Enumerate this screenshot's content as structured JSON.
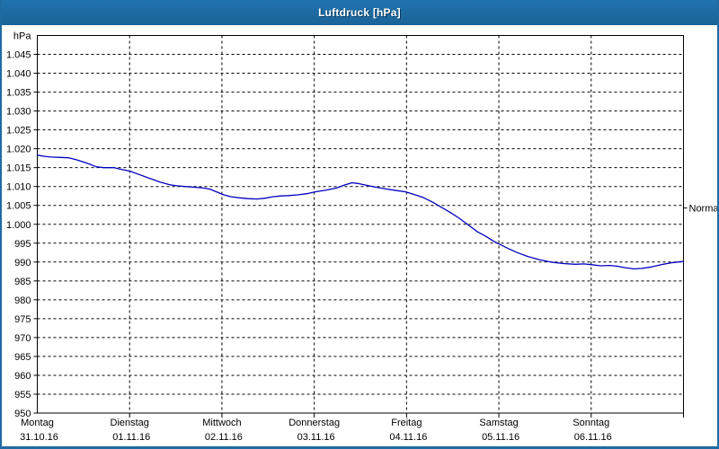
{
  "window": {
    "title": "Luftdruck [hPa]"
  },
  "colors": {
    "titlebar": "#1d6aa1",
    "window_border": "#1e6ba2",
    "background": "#ffffff",
    "grid": "#000000",
    "axis": "#000000",
    "series_line": "#0000bf",
    "label_text": "#000000"
  },
  "chart_data": {
    "type": "line",
    "title": "Luftdruck [hPa]",
    "ylabel_unit": "hPa",
    "y_axis": {
      "min": 950,
      "max": 1050,
      "step": 5,
      "unit_label": "hPa",
      "tick_labels": [
        "1.045",
        "1.040",
        "1.035",
        "1.030",
        "1.025",
        "1.020",
        "1.015",
        "1.010",
        "1.005",
        "1.000",
        "995",
        "990",
        "985",
        "980",
        "975",
        "970",
        "965",
        "960",
        "955",
        "950"
      ]
    },
    "x_axis": {
      "span_days": 7,
      "days": [
        {
          "name": "Montag",
          "date": "31.10.16"
        },
        {
          "name": "Dienstag",
          "date": "01.11.16"
        },
        {
          "name": "Mittwoch",
          "date": "02.11.16"
        },
        {
          "name": "Donnerstag",
          "date": "03.11.16"
        },
        {
          "name": "Freitag",
          "date": "04.11.16"
        },
        {
          "name": "Samstag",
          "date": "05.11.16"
        },
        {
          "name": "Sonntag",
          "date": "06.11.16"
        }
      ]
    },
    "annotations": [
      {
        "label": "Normal",
        "value": 1004.3,
        "side": "right"
      }
    ],
    "grid": "dashed",
    "legend_position": "none",
    "series": [
      {
        "name": "Luftdruck",
        "color": "#0000bf",
        "points": [
          [
            0.0,
            1018.3
          ],
          [
            0.08,
            1018.0
          ],
          [
            0.15,
            1017.8
          ],
          [
            0.25,
            1017.7
          ],
          [
            0.34,
            1017.6
          ],
          [
            0.42,
            1017.1
          ],
          [
            0.51,
            1016.4
          ],
          [
            0.58,
            1015.8
          ],
          [
            0.64,
            1015.2
          ],
          [
            0.72,
            1015.0
          ],
          [
            0.83,
            1015.0
          ],
          [
            0.9,
            1014.6
          ],
          [
            1.0,
            1014.1
          ],
          [
            1.1,
            1013.2
          ],
          [
            1.19,
            1012.4
          ],
          [
            1.33,
            1011.2
          ],
          [
            1.43,
            1010.5
          ],
          [
            1.51,
            1010.2
          ],
          [
            1.6,
            1010.0
          ],
          [
            1.7,
            1009.8
          ],
          [
            1.8,
            1009.6
          ],
          [
            1.87,
            1009.3
          ],
          [
            1.95,
            1008.5
          ],
          [
            2.02,
            1007.8
          ],
          [
            2.1,
            1007.3
          ],
          [
            2.19,
            1007.0
          ],
          [
            2.28,
            1006.8
          ],
          [
            2.38,
            1006.7
          ],
          [
            2.47,
            1006.9
          ],
          [
            2.55,
            1007.3
          ],
          [
            2.64,
            1007.5
          ],
          [
            2.72,
            1007.6
          ],
          [
            2.82,
            1007.8
          ],
          [
            2.92,
            1008.1
          ],
          [
            3.01,
            1008.6
          ],
          [
            3.12,
            1009.0
          ],
          [
            3.24,
            1009.6
          ],
          [
            3.33,
            1010.4
          ],
          [
            3.41,
            1011.0
          ],
          [
            3.47,
            1010.8
          ],
          [
            3.57,
            1010.3
          ],
          [
            3.67,
            1009.8
          ],
          [
            3.79,
            1009.3
          ],
          [
            3.9,
            1008.9
          ],
          [
            3.99,
            1008.6
          ],
          [
            4.08,
            1007.9
          ],
          [
            4.18,
            1007.1
          ],
          [
            4.28,
            1005.9
          ],
          [
            4.37,
            1004.6
          ],
          [
            4.47,
            1003.2
          ],
          [
            4.57,
            1001.6
          ],
          [
            4.67,
            999.8
          ],
          [
            4.77,
            998.0
          ],
          [
            4.86,
            996.8
          ],
          [
            4.95,
            995.4
          ],
          [
            5.0,
            994.8
          ],
          [
            5.1,
            993.6
          ],
          [
            5.2,
            992.5
          ],
          [
            5.31,
            991.5
          ],
          [
            5.44,
            990.6
          ],
          [
            5.56,
            990.0
          ],
          [
            5.7,
            989.6
          ],
          [
            5.83,
            989.4
          ],
          [
            5.92,
            989.5
          ],
          [
            6.0,
            989.3
          ],
          [
            6.1,
            989.0
          ],
          [
            6.2,
            989.1
          ],
          [
            6.28,
            988.9
          ],
          [
            6.37,
            988.5
          ],
          [
            6.46,
            988.2
          ],
          [
            6.55,
            988.3
          ],
          [
            6.65,
            988.7
          ],
          [
            6.76,
            989.3
          ],
          [
            6.87,
            989.8
          ],
          [
            6.94,
            990.0
          ],
          [
            7.0,
            990.2
          ]
        ]
      }
    ]
  }
}
